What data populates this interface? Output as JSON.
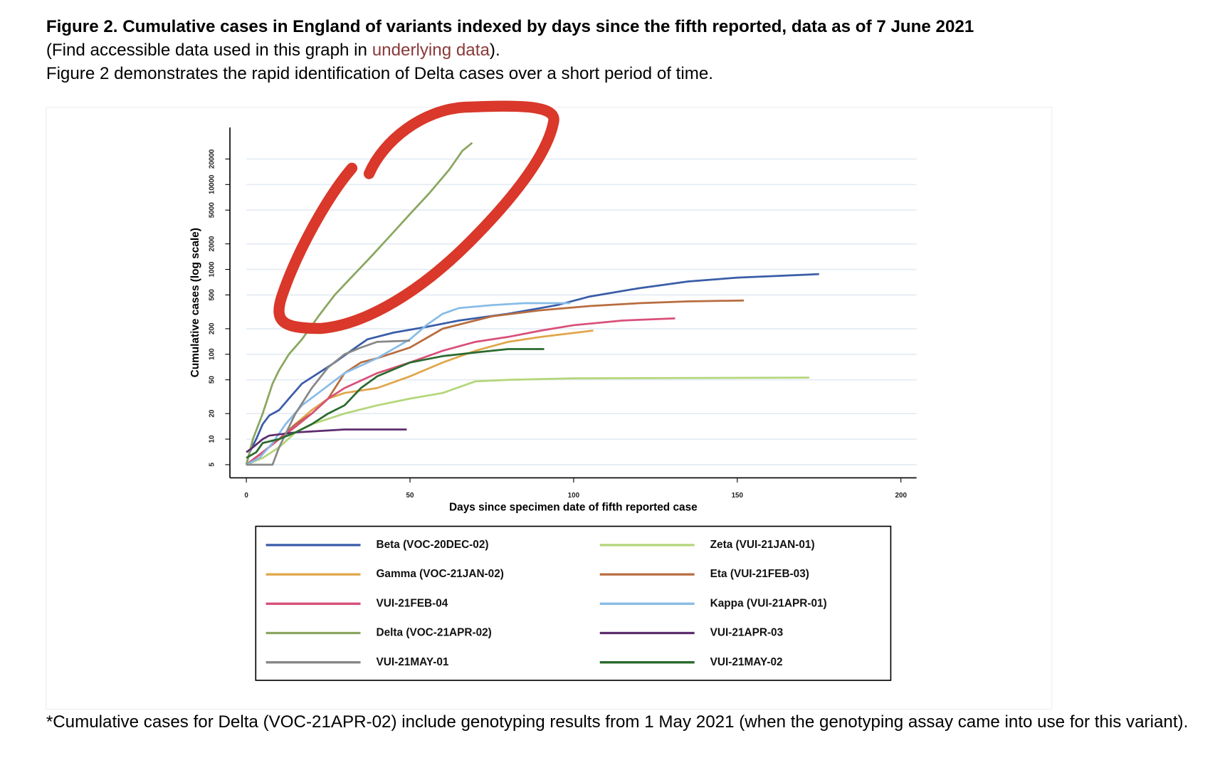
{
  "header": {
    "title": "Figure 2. Cumulative cases in England of variants indexed by days since the fifth reported, data as of 7 June 2021",
    "line2_before": "(Find accessible data used in this graph in ",
    "line2_link": "underlying data",
    "line2_after": ").",
    "line3": "Figure 2 demonstrates the rapid identification of Delta cases over a short period of time."
  },
  "chart_data": {
    "type": "line",
    "x_label": "Days since specimen date of fifth reported case",
    "y_label": "Cumulative cases (log scale)",
    "log_scale": true,
    "grid": true,
    "xlim": [
      0,
      200
    ],
    "xticks": [
      0,
      50,
      100,
      150,
      200
    ],
    "ylim": [
      3.5,
      47000
    ],
    "yticks": [
      5,
      10,
      20,
      50,
      100,
      200,
      500,
      1000,
      2000,
      5000,
      10000,
      20000
    ],
    "series": [
      {
        "name": "Beta (VOC-20DEC-02)",
        "color": "#3a5da8",
        "x": [
          0,
          1,
          3,
          5,
          7,
          10,
          13,
          17,
          22,
          27,
          32,
          37,
          45,
          55,
          65,
          80,
          95,
          105,
          120,
          135,
          150,
          175
        ],
        "values": [
          5,
          7,
          10,
          15,
          19,
          22,
          30,
          45,
          60,
          80,
          110,
          150,
          180,
          210,
          250,
          300,
          380,
          480,
          600,
          720,
          800,
          880
        ]
      },
      {
        "name": "Zeta (VUI-21JAN-01)",
        "color": "#b4d67a",
        "x": [
          0,
          5,
          10,
          15,
          20,
          30,
          40,
          50,
          60,
          70,
          80,
          100,
          172
        ],
        "values": [
          5,
          6,
          8,
          12,
          15,
          20,
          25,
          30,
          35,
          48,
          50,
          52,
          53
        ]
      },
      {
        "name": "Gamma (VOC-21JAN-02)",
        "color": "#e0a64a",
        "x": [
          0,
          5,
          10,
          15,
          20,
          25,
          30,
          40,
          50,
          60,
          70,
          80,
          90,
          106
        ],
        "values": [
          5,
          7,
          10,
          15,
          22,
          30,
          35,
          40,
          55,
          80,
          110,
          140,
          160,
          190
        ]
      },
      {
        "name": "Eta (VUI-21FEB-03)",
        "color": "#b86d3f",
        "x": [
          0,
          5,
          10,
          15,
          20,
          25,
          30,
          35,
          40,
          50,
          60,
          75,
          90,
          105,
          120,
          135,
          152
        ],
        "values": [
          5,
          7,
          10,
          15,
          20,
          30,
          60,
          80,
          90,
          120,
          200,
          280,
          330,
          370,
          400,
          420,
          430
        ]
      },
      {
        "name": "VUI-21FEB-04",
        "color": "#d9507a",
        "x": [
          0,
          5,
          10,
          15,
          20,
          25,
          30,
          40,
          50,
          60,
          70,
          80,
          90,
          100,
          115,
          131
        ],
        "values": [
          5,
          7,
          10,
          14,
          20,
          30,
          40,
          60,
          80,
          110,
          140,
          160,
          190,
          220,
          250,
          265
        ]
      },
      {
        "name": "Kappa (VUI-21APR-01)",
        "color": "#88bce6",
        "x": [
          0,
          4,
          8,
          12,
          17,
          22,
          30,
          40,
          50,
          55,
          60,
          65,
          75,
          85,
          99
        ],
        "values": [
          5,
          6,
          9,
          15,
          25,
          35,
          60,
          90,
          150,
          220,
          300,
          350,
          380,
          400,
          400
        ]
      },
      {
        "name": "Delta (VOC-21APR-02)",
        "color": "#8aa660",
        "x": [
          0,
          2,
          5,
          8,
          10,
          13,
          17,
          22,
          27,
          32,
          38,
          44,
          50,
          56,
          62,
          66,
          69
        ],
        "values": [
          5,
          10,
          20,
          45,
          65,
          100,
          150,
          280,
          500,
          800,
          1400,
          2500,
          4500,
          8000,
          15000,
          25000,
          31000
        ]
      },
      {
        "name": "VUI-21APR-03",
        "color": "#5e2d6e",
        "x": [
          0,
          2,
          5,
          7,
          15,
          30,
          49
        ],
        "values": [
          7,
          8,
          10,
          11,
          12,
          13,
          13
        ]
      },
      {
        "name": "VUI-21MAY-01",
        "color": "#888888",
        "x": [
          0,
          8,
          10,
          15,
          20,
          25,
          30,
          35,
          40,
          50
        ],
        "values": [
          5,
          5,
          8,
          20,
          40,
          70,
          100,
          120,
          140,
          145
        ]
      },
      {
        "name": "VUI-21MAY-02",
        "color": "#2a6b2e",
        "x": [
          0,
          3,
          5,
          10,
          15,
          20,
          25,
          30,
          35,
          40,
          50,
          60,
          70,
          80,
          91
        ],
        "values": [
          6,
          7,
          9,
          10,
          12,
          15,
          20,
          25,
          40,
          55,
          80,
          95,
          105,
          115,
          115
        ]
      }
    ]
  },
  "footnote": "*Cumulative cases for Delta (VOC-21APR-02) include genotyping results from 1 May 2021 (when the genotyping assay came into use for this variant)."
}
